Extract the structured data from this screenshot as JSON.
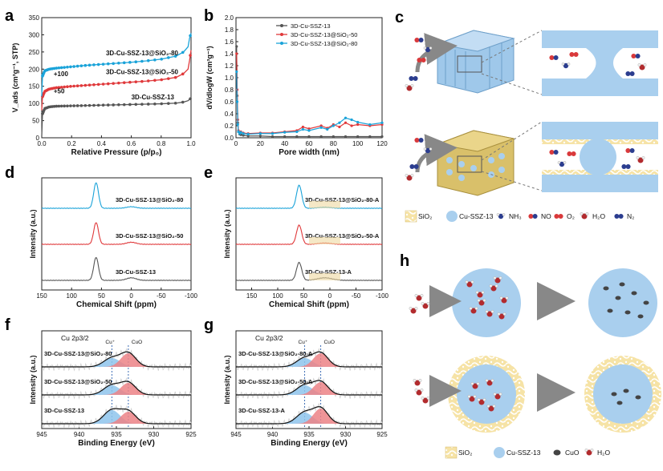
{
  "colors": {
    "black": "#555555",
    "blue": "#1aa3d9",
    "red": "#e0393b",
    "cu_plus": "#8ec4ec",
    "cuo_fill": "#ec8286",
    "sio2": "#efd27a",
    "ssz13": "#a9cfee",
    "noise": "#cfcfcf"
  },
  "panel_letters": [
    "a",
    "b",
    "c",
    "d",
    "e",
    "f",
    "g",
    "h"
  ],
  "chart_data": [
    {
      "id": "a",
      "type": "line",
      "title": "",
      "xlabel": "Relative Pressure (p/p₀)",
      "ylabel": "V_ads (cm³g⁻¹, STP)",
      "xlim": [
        0,
        1
      ],
      "ylim": [
        0,
        350
      ],
      "xticks": [
        0.0,
        0.2,
        0.4,
        0.6,
        0.8,
        1.0
      ],
      "yticks": [
        0,
        50,
        100,
        150,
        200,
        250,
        300,
        350
      ],
      "xtick_labels": [
        "0.0",
        "0.2",
        "0.4",
        "0.6",
        "0.8",
        "1.0"
      ],
      "ytick_labels": [
        "0",
        "50",
        "100",
        "150",
        "200",
        "250",
        "300",
        "350"
      ],
      "series": [
        {
          "name": "3D-Cu-SSZ-13",
          "color": "#555555",
          "x": [
            0.0,
            0.005,
            0.02,
            0.05,
            0.1,
            0.2,
            0.3,
            0.4,
            0.5,
            0.6,
            0.7,
            0.8,
            0.9,
            0.95,
            0.98,
            0.99,
            1.0
          ],
          "y": [
            5,
            70,
            85,
            90,
            92,
            93,
            94,
            95,
            96,
            97,
            98,
            99,
            101,
            104,
            108,
            112,
            115
          ]
        },
        {
          "name": "3D-Cu-SSZ-13@SiO₂-50",
          "color": "#e0393b",
          "x": [
            0.0,
            0.005,
            0.02,
            0.05,
            0.1,
            0.2,
            0.3,
            0.4,
            0.5,
            0.6,
            0.7,
            0.8,
            0.9,
            0.95,
            0.98,
            0.99,
            1.0
          ],
          "y": [
            80,
            120,
            135,
            142,
            146,
            150,
            153,
            156,
            159,
            162,
            165,
            169,
            176,
            187,
            200,
            225,
            255
          ]
        },
        {
          "name": "3D-Cu-SSZ-13@SiO₂-80",
          "color": "#1aa3d9",
          "x": [
            0.0,
            0.005,
            0.02,
            0.05,
            0.1,
            0.2,
            0.3,
            0.4,
            0.5,
            0.6,
            0.7,
            0.8,
            0.9,
            0.95,
            0.98,
            0.99,
            1.0
          ],
          "y": [
            120,
            180,
            195,
            200,
            203,
            207,
            211,
            214,
            217,
            220,
            224,
            229,
            238,
            250,
            265,
            290,
            305
          ]
        }
      ],
      "annotations": [
        {
          "text": "3D-Cu-SSZ-13@SiO₂-80",
          "at": [
            0.43,
            240
          ]
        },
        {
          "text": "3D-Cu-SSZ-13@SiO₂-50",
          "at": [
            0.43,
            185
          ]
        },
        {
          "text": "3D-Cu-SSZ-13",
          "at": [
            0.6,
            112
          ]
        },
        {
          "text": "+100",
          "at": [
            0.08,
            180
          ]
        },
        {
          "text": "+50",
          "at": [
            0.08,
            130
          ]
        }
      ]
    },
    {
      "id": "b",
      "type": "line",
      "xlabel": "Pore width (nm)",
      "ylabel": "dV/dlogW (cm³g⁻¹)",
      "xlim": [
        0,
        120
      ],
      "ylim": [
        0,
        2.0
      ],
      "xticks": [
        0,
        20,
        40,
        60,
        80,
        100,
        120
      ],
      "yticks": [
        0,
        0.2,
        0.4,
        0.6,
        0.8,
        1.0,
        1.2,
        1.4,
        1.6,
        1.8,
        2.0
      ],
      "xtick_labels": [
        "0",
        "20",
        "40",
        "60",
        "80",
        "100",
        "120"
      ],
      "ytick_labels": [
        "0.0",
        "0.2",
        "0.4",
        "0.6",
        "0.8",
        "1.0",
        "1.2",
        "1.4",
        "1.6",
        "1.8",
        "2.0"
      ],
      "legend": "top-center",
      "series": [
        {
          "name": "3D-Cu-SSZ-13",
          "color": "#555555",
          "x": [
            0.5,
            1,
            1.5,
            2,
            3,
            4,
            6,
            10,
            20,
            30,
            40,
            50,
            60,
            70,
            80,
            90,
            100,
            110,
            120
          ],
          "y": [
            1.52,
            0.7,
            0.25,
            0.1,
            0.06,
            0.05,
            0.04,
            0.03,
            0.03,
            0.02,
            0.02,
            0.02,
            0.02,
            0.02,
            0.02,
            0.02,
            0.02,
            0.02,
            0.02
          ]
        },
        {
          "name": "3D-Cu-SSZ-13@SiO₂-50",
          "color": "#e0393b",
          "x": [
            0.5,
            1,
            1.5,
            2,
            3,
            4,
            6,
            10,
            20,
            30,
            40,
            50,
            55,
            60,
            70,
            75,
            80,
            85,
            90,
            95,
            100,
            110,
            120
          ],
          "y": [
            1.4,
            0.8,
            0.3,
            0.12,
            0.08,
            0.1,
            0.08,
            0.07,
            0.08,
            0.08,
            0.1,
            0.12,
            0.18,
            0.15,
            0.2,
            0.16,
            0.22,
            0.18,
            0.25,
            0.2,
            0.22,
            0.2,
            0.22
          ]
        },
        {
          "name": "3D-Cu-SSZ-13@SiO₂-80",
          "color": "#1aa3d9",
          "x": [
            0.5,
            1,
            1.5,
            2,
            3,
            4,
            6,
            10,
            20,
            30,
            40,
            50,
            55,
            60,
            70,
            75,
            80,
            85,
            90,
            95,
            100,
            110,
            120
          ],
          "y": [
            1.1,
            0.6,
            0.22,
            0.1,
            0.07,
            0.09,
            0.07,
            0.06,
            0.07,
            0.07,
            0.09,
            0.1,
            0.14,
            0.12,
            0.17,
            0.14,
            0.2,
            0.25,
            0.33,
            0.3,
            0.26,
            0.22,
            0.25
          ]
        }
      ]
    },
    {
      "id": "d",
      "type": "line",
      "xlabel": "Chemical Shift (ppm)",
      "ylabel": "Intensity (a.u.)",
      "xlim": [
        150,
        -100
      ],
      "xticks": [
        150,
        100,
        50,
        0,
        -50,
        -100
      ],
      "xtick_labels": [
        "150",
        "100",
        "50",
        "0",
        "-50",
        "-100"
      ],
      "series": [
        {
          "name": "3D-Cu-SSZ-13@SiO₂-80",
          "color": "#1aa3d9",
          "peaks": [
            [
              59,
              1.0,
              4
            ],
            [
              0,
              0.06,
              8
            ]
          ]
        },
        {
          "name": "3D-Cu-SSZ-13@SiO₂-50",
          "color": "#e0393b",
          "peaks": [
            [
              59,
              0.85,
              4
            ],
            [
              0,
              0.08,
              8
            ]
          ]
        },
        {
          "name": "3D-Cu-SSZ-13",
          "color": "#555555",
          "peaks": [
            [
              59,
              0.9,
              4
            ],
            [
              0,
              0.1,
              8
            ]
          ]
        }
      ]
    },
    {
      "id": "e",
      "type": "line",
      "xlabel": "Chemical Shift (ppm)",
      "ylabel": "Intensity (a.u.)",
      "xlim": [
        180,
        -100
      ],
      "xticks": [
        150,
        100,
        50,
        0,
        -50,
        -100
      ],
      "xtick_labels": [
        "150",
        "100",
        "50",
        "0",
        "-50",
        "-100"
      ],
      "series": [
        {
          "name": "3D-Cu-SSZ-13@SiO₂-80-A",
          "color": "#1aa3d9",
          "peaks": [
            [
              59,
              0.9,
              5
            ],
            [
              10,
              0.04,
              12
            ]
          ]
        },
        {
          "name": "3D-Cu-SSZ-13@SiO₂-50-A",
          "color": "#e0393b",
          "peaks": [
            [
              59,
              0.75,
              5
            ],
            [
              10,
              0.05,
              12
            ]
          ]
        },
        {
          "name": "3D-Cu-SSZ-13-A",
          "color": "#555555",
          "peaks": [
            [
              59,
              0.7,
              5
            ],
            [
              10,
              0.1,
              14
            ]
          ]
        }
      ]
    },
    {
      "id": "f",
      "type": "line",
      "title": "Cu 2p3/2",
      "xlabel": "Binding Energy (eV)",
      "ylabel": "Intensity (a.u.)",
      "xlim": [
        945,
        925
      ],
      "xticks": [
        945,
        940,
        935,
        930,
        925
      ],
      "xtick_labels": [
        "945",
        "940",
        "935",
        "930",
        "925"
      ],
      "markers": [
        {
          "label": "Cu⁺",
          "x": 935.6
        },
        {
          "label": "CuO",
          "x": 933.4
        }
      ],
      "series": [
        {
          "name": "3D-Cu-SSZ-13@SiO₂-80",
          "cu_plus": 0.55,
          "cuo": 0.85
        },
        {
          "name": "3D-Cu-SSZ-13@SiO₂-50",
          "cu_plus": 0.6,
          "cuo": 0.75
        },
        {
          "name": "3D-Cu-SSZ-13",
          "cu_plus": 0.85,
          "cuo": 0.75
        }
      ]
    },
    {
      "id": "g",
      "type": "line",
      "title": "Cu 2p3/2",
      "xlabel": "Binding Energy (eV)",
      "ylabel": "Intensity (a.u.)",
      "xlim": [
        945,
        925
      ],
      "xticks": [
        945,
        940,
        935,
        930,
        925
      ],
      "xtick_labels": [
        "945",
        "940",
        "935",
        "930",
        "925"
      ],
      "markers": [
        {
          "label": "Cu⁺",
          "x": 935.6
        },
        {
          "label": "CuO",
          "x": 933.4
        }
      ],
      "series": [
        {
          "name": "3D-Cu-SSZ-13@SiO₂-80-A",
          "cu_plus": 0.55,
          "cuo": 0.85
        },
        {
          "name": "3D-Cu-SSZ-13@SiO₂-50-A",
          "cu_plus": 0.6,
          "cuo": 0.8
        },
        {
          "name": "3D-Cu-SSZ-13-A",
          "cu_plus": 0.7,
          "cuo": 0.95
        }
      ]
    }
  ],
  "panel_c_legend": [
    {
      "label": "SiO₂",
      "icon": "sio2-swatch"
    },
    {
      "label": "Cu-SSZ-13",
      "icon": "ssz13-swatch"
    },
    {
      "label": "NH₃",
      "icon": "nh3-molecule"
    },
    {
      "label": "NO",
      "icon": "no-molecule"
    },
    {
      "label": "O₂",
      "icon": "o2-molecule"
    },
    {
      "label": "H₂O",
      "icon": "h2o-molecule"
    },
    {
      "label": "N₂",
      "icon": "n2-molecule"
    }
  ],
  "panel_h_legend": [
    {
      "label": "SiO₂",
      "icon": "sio2-swatch"
    },
    {
      "label": "Cu-SSZ-13",
      "icon": "ssz13-swatch"
    },
    {
      "label": "CuO",
      "icon": "cuo-particle"
    },
    {
      "label": "H₂O",
      "icon": "h2o-molecule"
    }
  ]
}
